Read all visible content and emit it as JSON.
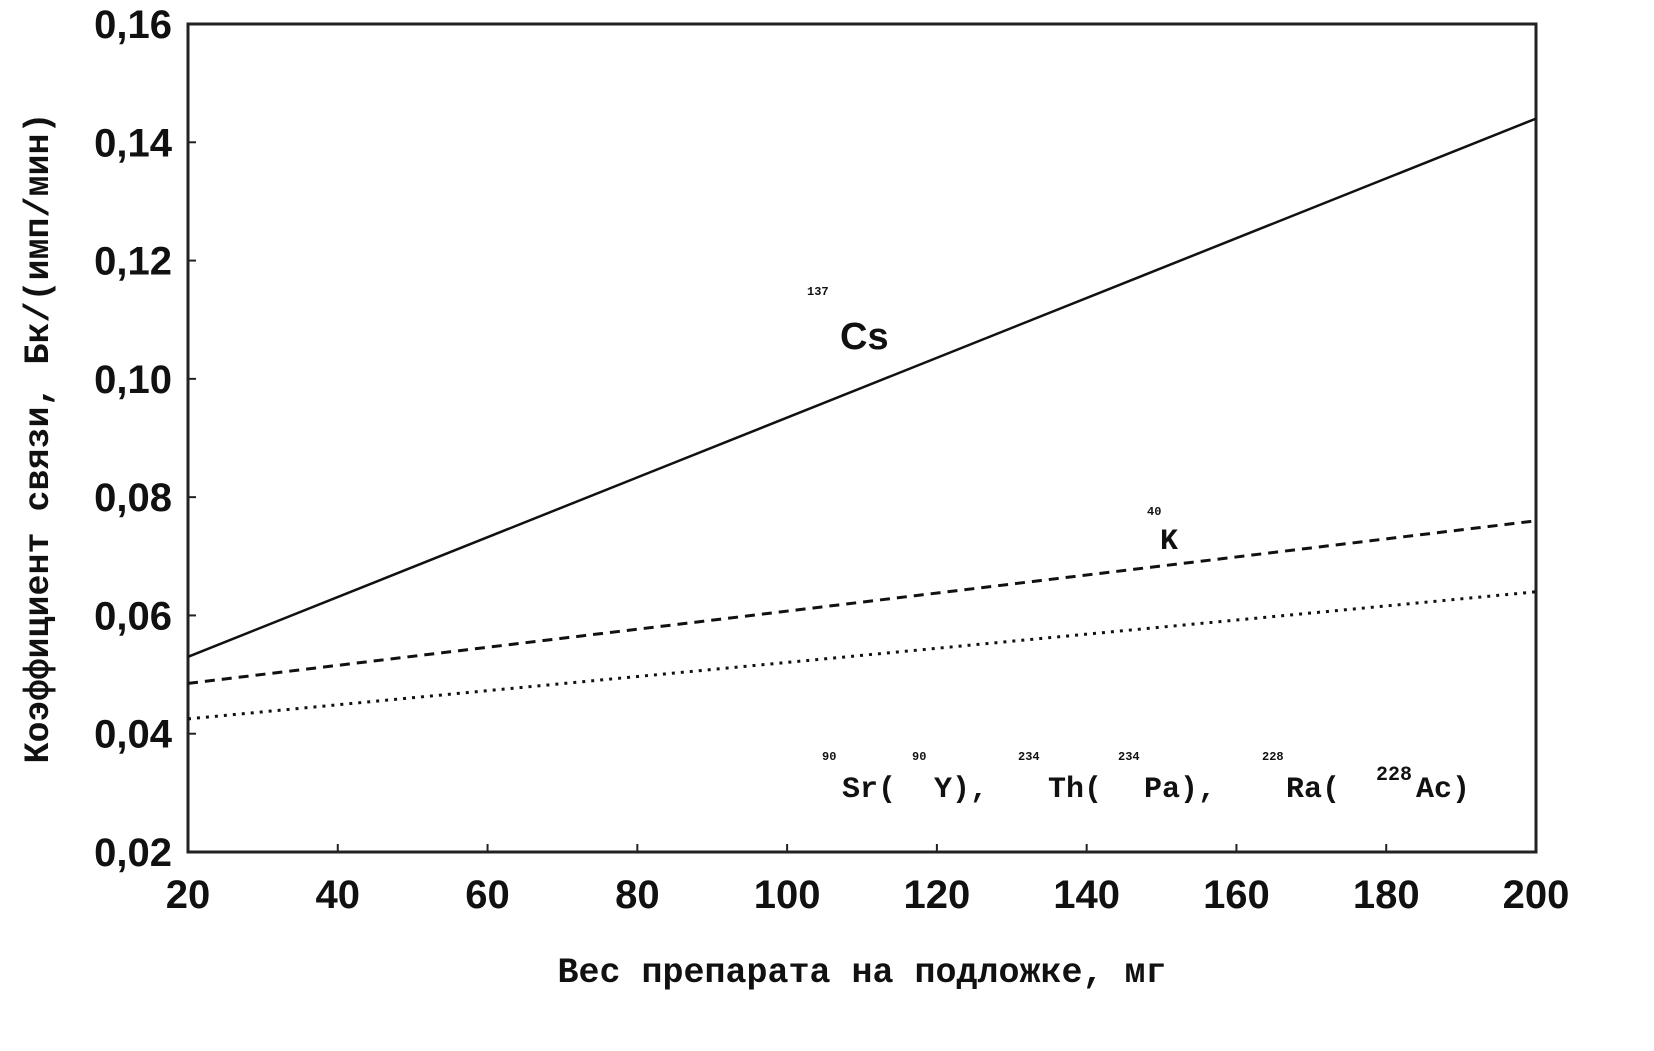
{
  "chart_data": {
    "type": "line",
    "xlabel": "Вес препарата на подложке, мг",
    "ylabel": "Коэффициент связи, Бк/(имп/мин)",
    "xlim": [
      20,
      200
    ],
    "ylim": [
      0.02,
      0.16
    ],
    "x_ticks": [
      "20",
      "40",
      "60",
      "80",
      "100",
      "120",
      "140",
      "160",
      "180",
      "200"
    ],
    "y_ticks": [
      "0,02",
      "0,04",
      "0,06",
      "0,08",
      "0,10",
      "0,12",
      "0,14",
      "0,16"
    ],
    "grid": false,
    "series": [
      {
        "x": [
          20,
          200
        ],
        "values": [
          0.053,
          0.144
        ],
        "style": "solid",
        "label_parts": {
          "sup": "137",
          "main": "Cs"
        }
      },
      {
        "x": [
          20,
          200
        ],
        "values": [
          0.0485,
          0.076
        ],
        "style": "dashed",
        "label_parts": {
          "sup": "40",
          "main": "K"
        }
      },
      {
        "x": [
          20,
          200
        ],
        "values": [
          0.0425,
          0.064
        ],
        "style": "dotted",
        "label_parts": {
          "sup1": "90",
          "main1": "Sr(",
          "sup2": "90",
          "main2": "Y),",
          "sup3": "234",
          "main3": "Th(",
          "sup4": "234",
          "main4": "Pa),",
          "sup5": "228",
          "main5": "Ra(",
          "sup6": "228",
          "main6": "Ac)"
        }
      }
    ],
    "colors": {
      "line": "#111111",
      "frame": "#222222"
    }
  }
}
